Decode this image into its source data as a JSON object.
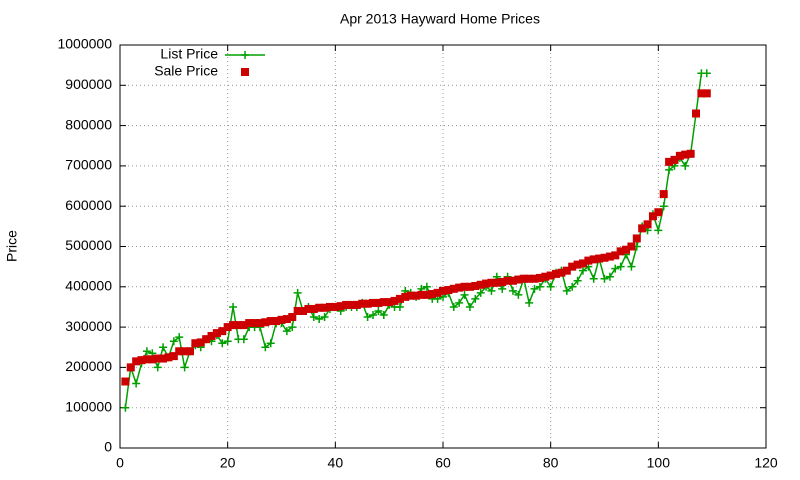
{
  "chart_data": {
    "type": "scatter",
    "title": "Apr 2013 Hayward Home Prices",
    "ylabel": "Price",
    "x": [
      1,
      2,
      3,
      4,
      5,
      6,
      7,
      8,
      9,
      10,
      11,
      12,
      13,
      14,
      15,
      16,
      17,
      18,
      19,
      20,
      21,
      22,
      23,
      24,
      25,
      26,
      27,
      28,
      29,
      30,
      31,
      32,
      33,
      34,
      35,
      36,
      37,
      38,
      39,
      40,
      41,
      42,
      43,
      44,
      45,
      46,
      47,
      48,
      49,
      50,
      51,
      52,
      53,
      54,
      55,
      56,
      57,
      58,
      59,
      60,
      61,
      62,
      63,
      64,
      65,
      66,
      67,
      68,
      69,
      70,
      71,
      72,
      73,
      74,
      75,
      76,
      77,
      78,
      79,
      80,
      81,
      82,
      83,
      84,
      85,
      86,
      87,
      88,
      89,
      90,
      91,
      92,
      93,
      94,
      95,
      96,
      97,
      98,
      99,
      100,
      101,
      102,
      103,
      104,
      105,
      106,
      107,
      108,
      109
    ],
    "series": [
      {
        "name": "List Price",
        "color": "#00a000",
        "style": "linespoints",
        "values": [
          100000,
          200000,
          160000,
          210000,
          240000,
          235000,
          200000,
          250000,
          225000,
          265000,
          275000,
          200000,
          240000,
          255000,
          250000,
          270000,
          265000,
          280000,
          260000,
          265000,
          350000,
          270000,
          270000,
          300000,
          300000,
          300000,
          250000,
          260000,
          310000,
          310000,
          290000,
          300000,
          385000,
          340000,
          350000,
          325000,
          320000,
          325000,
          345000,
          350000,
          340000,
          350000,
          350000,
          350000,
          360000,
          325000,
          330000,
          340000,
          330000,
          355000,
          350000,
          350000,
          390000,
          385000,
          375000,
          395000,
          400000,
          370000,
          370000,
          375000,
          385000,
          350000,
          360000,
          380000,
          350000,
          370000,
          385000,
          400000,
          390000,
          425000,
          395000,
          425000,
          390000,
          380000,
          420000,
          360000,
          395000,
          400000,
          420000,
          400000,
          435000,
          440000,
          390000,
          400000,
          415000,
          440000,
          450000,
          420000,
          470000,
          420000,
          425000,
          445000,
          450000,
          480000,
          450000,
          500000,
          550000,
          540000,
          580000,
          540000,
          600000,
          690000,
          700000,
          720000,
          700000,
          730000,
          830000,
          930000,
          930000
        ]
      },
      {
        "name": "Sale Price",
        "color": "#cc0000",
        "style": "points",
        "values": [
          165000,
          200000,
          215000,
          218000,
          220000,
          220000,
          222000,
          222000,
          225000,
          228000,
          240000,
          240000,
          240000,
          260000,
          262000,
          270000,
          278000,
          285000,
          290000,
          300000,
          305000,
          305000,
          305000,
          310000,
          310000,
          310000,
          312000,
          315000,
          315000,
          318000,
          320000,
          325000,
          340000,
          340000,
          345000,
          345000,
          348000,
          348000,
          350000,
          350000,
          352000,
          355000,
          355000,
          355000,
          358000,
          358000,
          360000,
          360000,
          362000,
          362000,
          365000,
          370000,
          375000,
          378000,
          378000,
          380000,
          380000,
          382000,
          385000,
          390000,
          392000,
          395000,
          398000,
          400000,
          400000,
          402000,
          405000,
          408000,
          410000,
          410000,
          412000,
          415000,
          415000,
          418000,
          420000,
          420000,
          420000,
          422000,
          425000,
          428000,
          432000,
          435000,
          440000,
          450000,
          455000,
          458000,
          465000,
          468000,
          470000,
          472000,
          475000,
          478000,
          488000,
          492000,
          500000,
          520000,
          545000,
          555000,
          575000,
          585000,
          630000,
          710000,
          715000,
          725000,
          728000,
          730000,
          830000,
          880000,
          880000
        ]
      }
    ],
    "xlim": [
      0,
      120
    ],
    "xticks": [
      0,
      20,
      40,
      60,
      80,
      100,
      120
    ],
    "ylim": [
      0,
      1000000
    ],
    "yticks": [
      0,
      100000,
      200000,
      300000,
      400000,
      500000,
      600000,
      700000,
      800000,
      900000,
      1000000
    ],
    "grid": true,
    "legend": "top-left"
  }
}
